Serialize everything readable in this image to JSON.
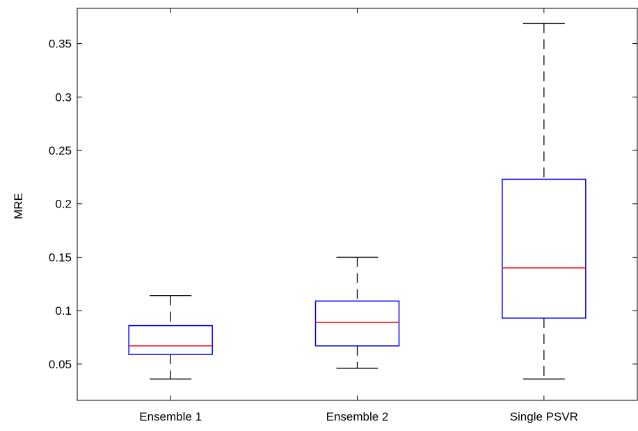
{
  "chart_data": {
    "type": "boxplot",
    "title": "",
    "xlabel": "",
    "ylabel": "MRE",
    "ylim": [
      0.016,
      0.383
    ],
    "yticks": [
      0.05,
      0.1,
      0.15,
      0.2,
      0.25,
      0.3,
      0.35
    ],
    "ytick_labels": [
      "0.05",
      "0.1",
      "0.15",
      "0.2",
      "0.25",
      "0.3",
      "0.35"
    ],
    "grid": false,
    "categories": [
      "Ensemble 1",
      "Ensemble 2",
      "Single PSVR"
    ],
    "boxes": [
      {
        "category": "Ensemble 1",
        "whisker_low": 0.036,
        "q1": 0.059,
        "median": 0.067,
        "q3": 0.086,
        "whisker_high": 0.114
      },
      {
        "category": "Ensemble 2",
        "whisker_low": 0.046,
        "q1": 0.067,
        "median": 0.089,
        "q3": 0.109,
        "whisker_high": 0.15
      },
      {
        "category": "Single PSVR",
        "whisker_low": 0.036,
        "q1": 0.093,
        "median": 0.14,
        "q3": 0.223,
        "whisker_high": 0.369
      }
    ],
    "colors": {
      "box": "#0000ff",
      "median": "#ff0000",
      "whisker": "#000000",
      "axes": "#000000"
    }
  }
}
